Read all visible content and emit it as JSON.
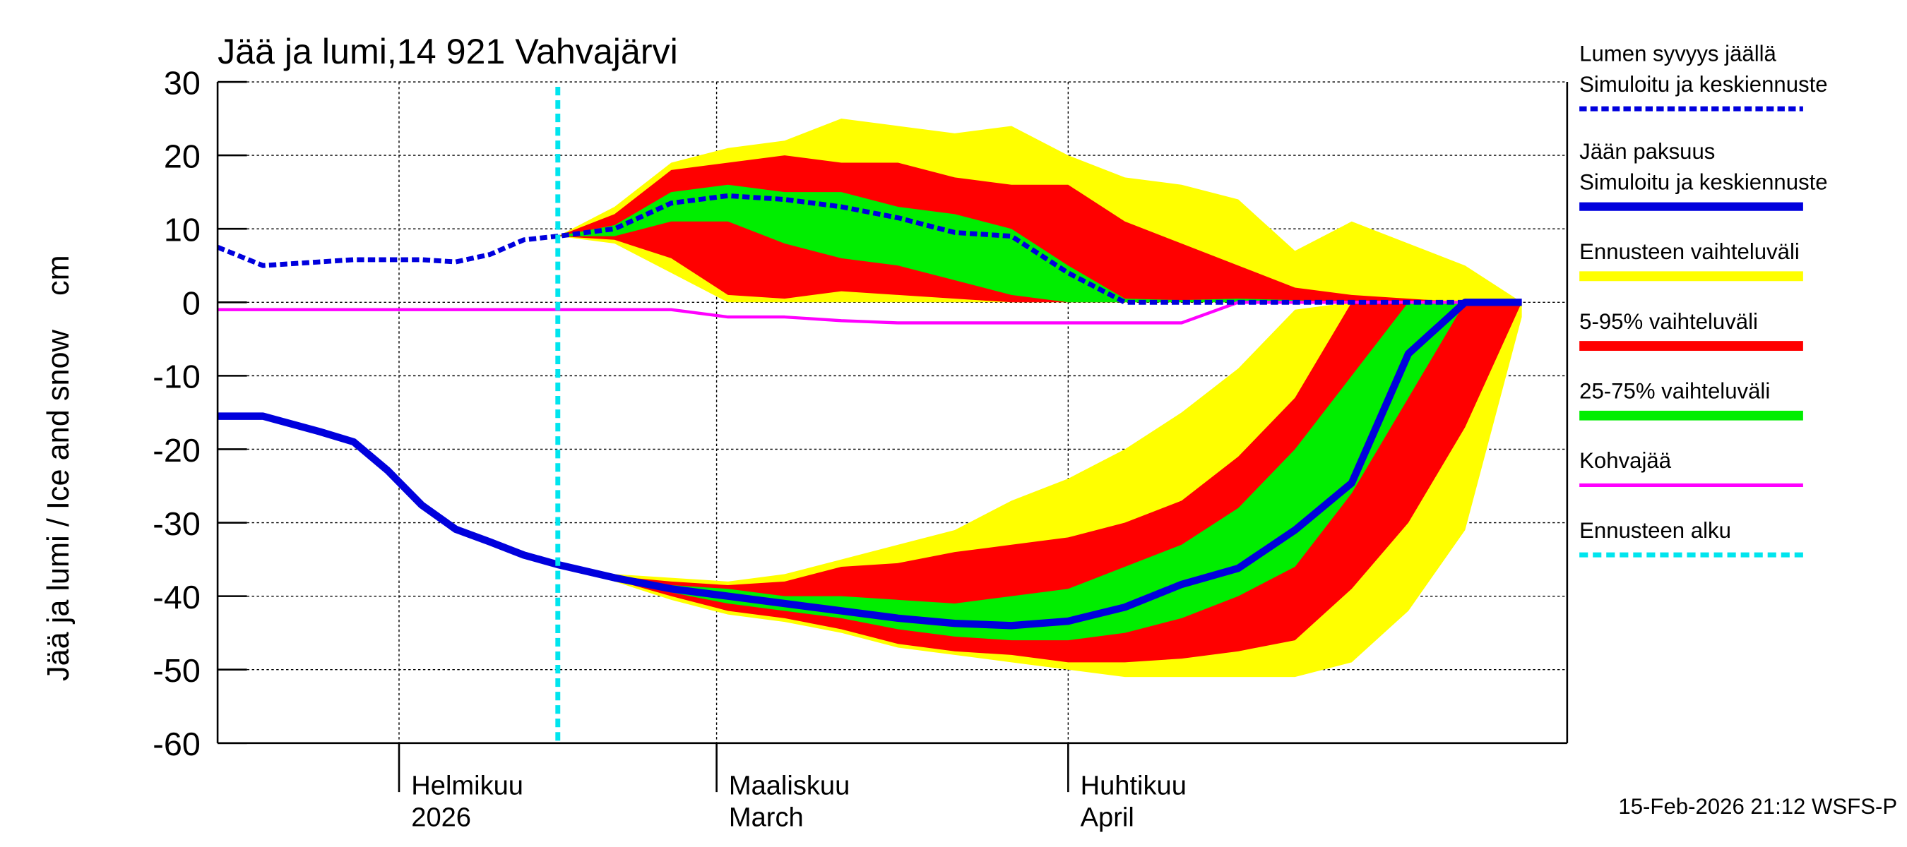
{
  "chart_data": {
    "type": "band_line",
    "title": "Jää ja lumi,14 921 Vahvajärvi",
    "y_label": "Jää ja lumi / Ice and snow    cm",
    "footer": "15-Feb-2026 21:12 WSFS-P",
    "x": [
      "2026-01-16",
      "2026-01-20",
      "2026-01-25",
      "2026-01-28",
      "2026-01-31",
      "2026-02-03",
      "2026-02-06",
      "2026-02-09",
      "2026-02-12",
      "2026-02-15",
      "2026-02-20",
      "2026-02-25",
      "2026-03-02",
      "2026-03-07",
      "2026-03-12",
      "2026-03-17",
      "2026-03-22",
      "2026-03-27",
      "2026-04-01",
      "2026-04-06",
      "2026-04-11",
      "2026-04-16",
      "2026-04-21",
      "2026-04-26",
      "2026-05-01",
      "2026-05-06",
      "2026-05-11"
    ],
    "xlim": [
      "2026-01-16",
      "2026-05-15"
    ],
    "xticks": [
      {
        "value": "2026-02-01",
        "label": [
          "Helmikuu",
          "2026"
        ]
      },
      {
        "value": "2026-03-01",
        "label": [
          "Maaliskuu",
          "March"
        ]
      },
      {
        "value": "2026-04-01",
        "label": [
          "Huhtikuu",
          "April"
        ]
      }
    ],
    "ylim": [
      -60,
      30
    ],
    "yticks": [
      -60,
      -50,
      -40,
      -30,
      -20,
      -10,
      0,
      10,
      20,
      30
    ],
    "grid": true,
    "forecast_start": {
      "name": "Ennusteen alku",
      "color": "#00e5ee",
      "x": "2026-02-15"
    },
    "series": [
      {
        "name": [
          "Lumen syvyys jäällä",
          "Simuloitu ja keskiennuste"
        ],
        "color": "#0000dd",
        "dashed": true,
        "values": [
          7.5,
          5,
          5.5,
          5.8,
          5.8,
          5.8,
          5.5,
          6.5,
          8.5,
          9,
          10,
          13.5,
          14.5,
          14,
          13,
          11.5,
          9.5,
          9,
          4,
          0,
          0,
          0,
          0,
          0,
          0,
          0,
          0
        ]
      },
      {
        "name": [
          "Jään paksuus",
          "Simuloitu ja keskiennuste"
        ],
        "color": "#0000dd",
        "dashed": false,
        "values": [
          -15.5,
          -15.5,
          -17.6,
          -19,
          -22.9,
          -27.6,
          -30.9,
          -32.6,
          -34.4,
          -35.7,
          -37.5,
          -39,
          -40,
          -41,
          -42,
          -43,
          -43.7,
          -44,
          -43.4,
          -41.5,
          -38.4,
          -36.2,
          -31,
          -24.6,
          -7,
          0,
          0
        ]
      },
      {
        "name": "Kohvajää",
        "color": "#ff00ff",
        "dashed": false,
        "values": [
          -1,
          -1,
          -1,
          -1,
          -1,
          -1,
          -1,
          -1,
          -1,
          -1,
          -1,
          -1,
          -2,
          -2,
          -2.5,
          -2.8,
          -2.8,
          -2.8,
          -2.8,
          -2.8,
          -2.8,
          0,
          0,
          0,
          0,
          0,
          0
        ]
      }
    ],
    "bands": [
      {
        "name": "Ennusteen vaihteluväli",
        "color": "#ffff00",
        "snow": {
          "low": [
            null,
            null,
            null,
            null,
            null,
            null,
            null,
            null,
            null,
            9,
            8,
            4,
            0,
            0,
            0,
            0,
            0,
            0,
            0,
            0,
            0,
            0,
            0,
            0,
            0,
            0,
            0
          ],
          "high": [
            null,
            null,
            null,
            null,
            null,
            null,
            null,
            null,
            null,
            9,
            13,
            19,
            21,
            22,
            25,
            24,
            23,
            24,
            20,
            17,
            16,
            14,
            7,
            11,
            8,
            5,
            0
          ]
        },
        "ice": {
          "low": [
            null,
            null,
            null,
            null,
            null,
            null,
            null,
            null,
            null,
            -35.7,
            -38,
            -40.5,
            -42.5,
            -43.5,
            -45,
            -47,
            -48,
            -49,
            -50,
            -51,
            -51,
            -51,
            -51,
            -49,
            -42,
            -31,
            -2
          ],
          "high": [
            null,
            null,
            null,
            null,
            null,
            null,
            null,
            null,
            null,
            -35.7,
            -37,
            -37.5,
            -38,
            -37,
            -35,
            -33,
            -31,
            -27,
            -24,
            -20,
            -15,
            -9,
            -1,
            0,
            0,
            0,
            0
          ]
        }
      },
      {
        "name": "5-95% vaihteluväli",
        "color": "#ff0000",
        "snow": {
          "low": [
            null,
            null,
            null,
            null,
            null,
            null,
            null,
            null,
            null,
            9,
            8.5,
            6,
            1,
            0.5,
            1.5,
            1,
            0.5,
            0,
            0,
            0,
            0,
            0,
            0,
            0,
            0,
            0,
            0
          ],
          "high": [
            null,
            null,
            null,
            null,
            null,
            null,
            null,
            null,
            null,
            9,
            12,
            18,
            19,
            20,
            19,
            19,
            17,
            16,
            16,
            11,
            8,
            5,
            2,
            1,
            0.5,
            0,
            0
          ]
        },
        "ice": {
          "low": [
            null,
            null,
            null,
            null,
            null,
            null,
            null,
            null,
            null,
            -35.7,
            -37.8,
            -40,
            -42,
            -43,
            -44.5,
            -46.5,
            -47.5,
            -48,
            -49,
            -49,
            -48.5,
            -47.5,
            -46,
            -39,
            -30,
            -17,
            0
          ],
          "high": [
            null,
            null,
            null,
            null,
            null,
            null,
            null,
            null,
            null,
            -35.7,
            -37.3,
            -38,
            -38.5,
            -38,
            -36,
            -35.5,
            -34,
            -33,
            -32,
            -30,
            -27,
            -21,
            -13,
            0,
            0,
            0,
            0
          ]
        }
      },
      {
        "name": "25-75% vaihteluväli",
        "color": "#00ee00",
        "snow": {
          "low": [
            null,
            null,
            null,
            null,
            null,
            null,
            null,
            null,
            null,
            9,
            9,
            11,
            11,
            8,
            6,
            5,
            3,
            1,
            0,
            0,
            0,
            0,
            0,
            0,
            0,
            0,
            0
          ],
          "high": [
            null,
            null,
            null,
            null,
            null,
            null,
            null,
            null,
            null,
            9,
            10.5,
            15,
            16,
            15,
            15,
            13,
            12,
            10,
            5,
            0.5,
            0.3,
            0.5,
            0.3,
            0,
            0,
            0,
            0
          ]
        },
        "ice": {
          "low": [
            null,
            null,
            null,
            null,
            null,
            null,
            null,
            null,
            null,
            -35.7,
            -37.7,
            -39.5,
            -41,
            -42,
            -43,
            -44.5,
            -45.5,
            -46,
            -46,
            -45,
            -43,
            -40,
            -36,
            -26,
            -13,
            0,
            0
          ],
          "high": [
            null,
            null,
            null,
            null,
            null,
            null,
            null,
            null,
            null,
            -35.7,
            -37.4,
            -38.5,
            -39,
            -40,
            -40,
            -40.5,
            -41,
            -40,
            -39,
            -36,
            -33,
            -28,
            -20,
            -10,
            0,
            0,
            0
          ]
        }
      }
    ]
  }
}
